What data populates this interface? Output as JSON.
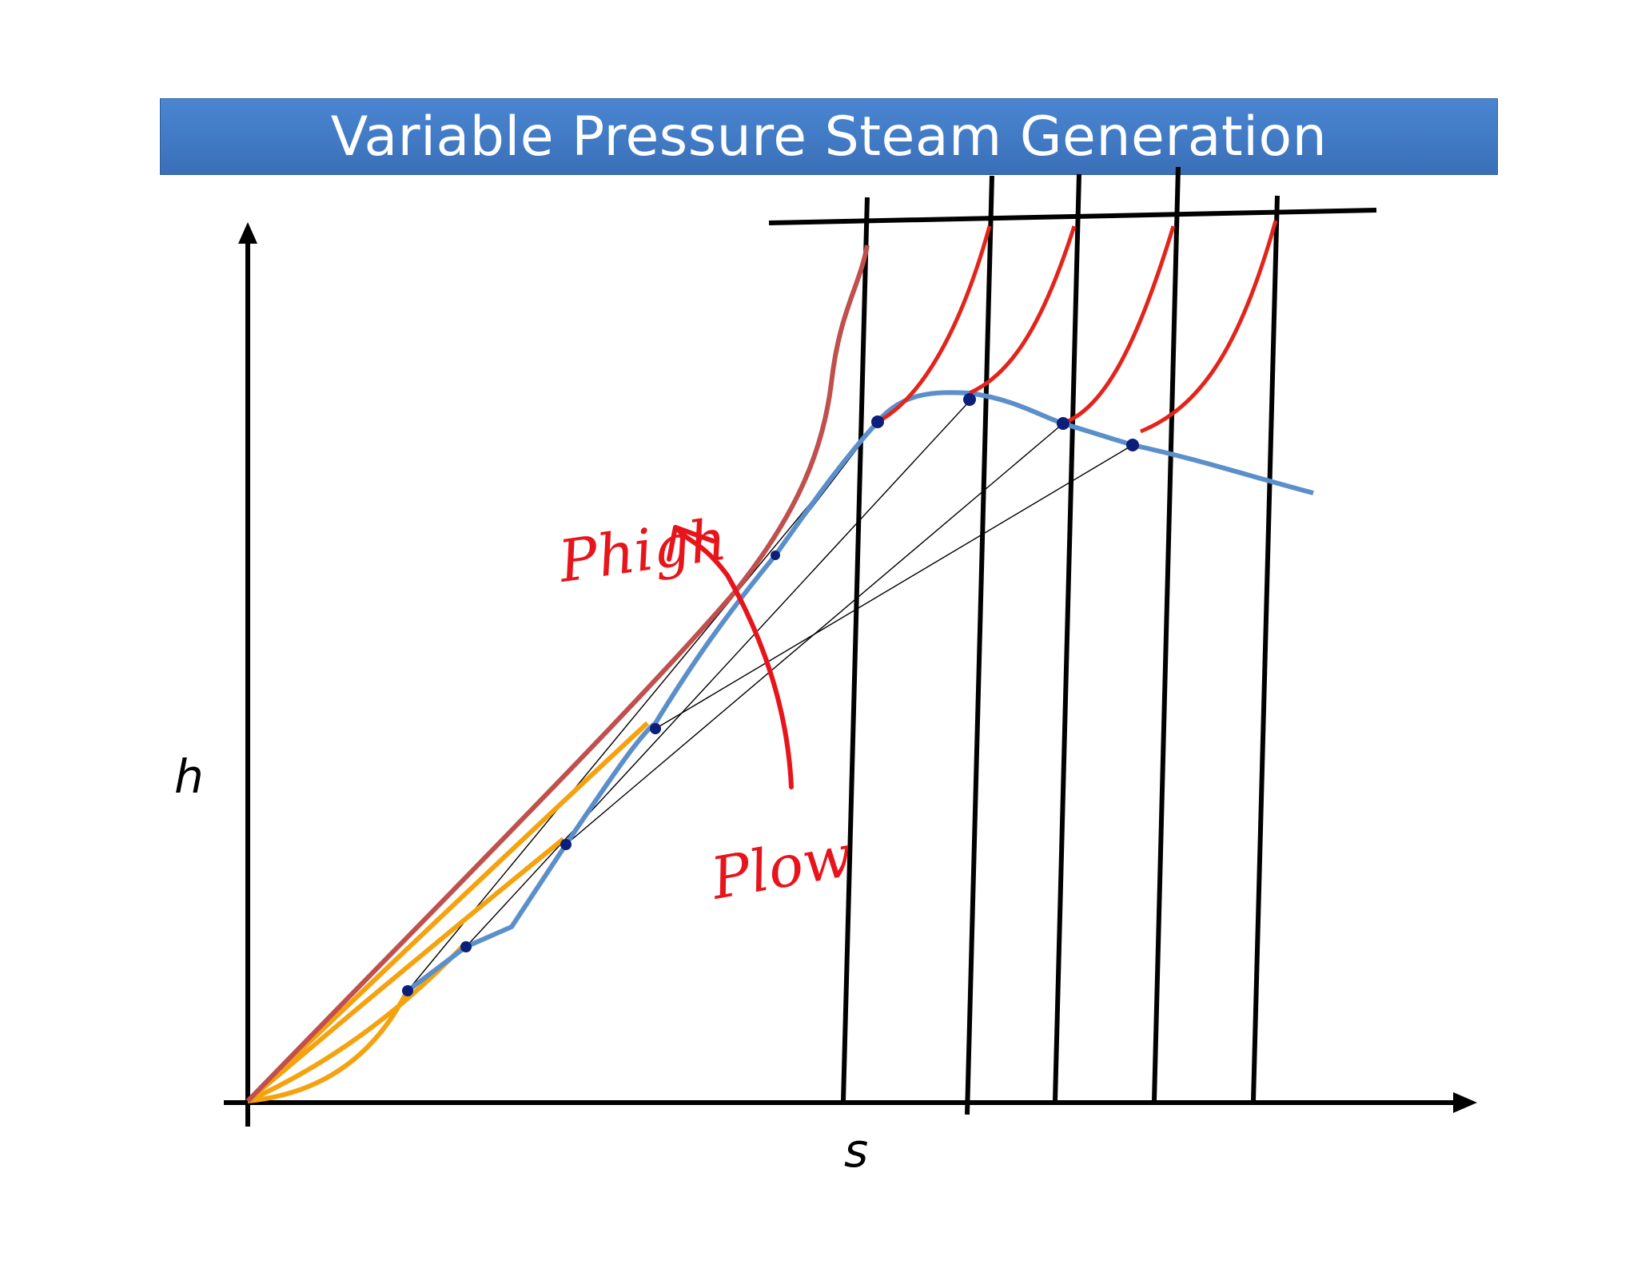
{
  "title": "Variable Pressure Steam Generation",
  "axes": {
    "y_label": "h",
    "x_label": "s"
  },
  "annotations": {
    "high": "Phigh",
    "low": "Plow"
  },
  "colors": {
    "title_bg": "#3f79c4",
    "saturation_dome": "#5b8fcb",
    "critical_path": "#c0504d",
    "superheat": "#e3241b",
    "liquid_heating": "#f5a20f",
    "annotation": "#e8141b",
    "marker": "#0b1e7a"
  }
}
